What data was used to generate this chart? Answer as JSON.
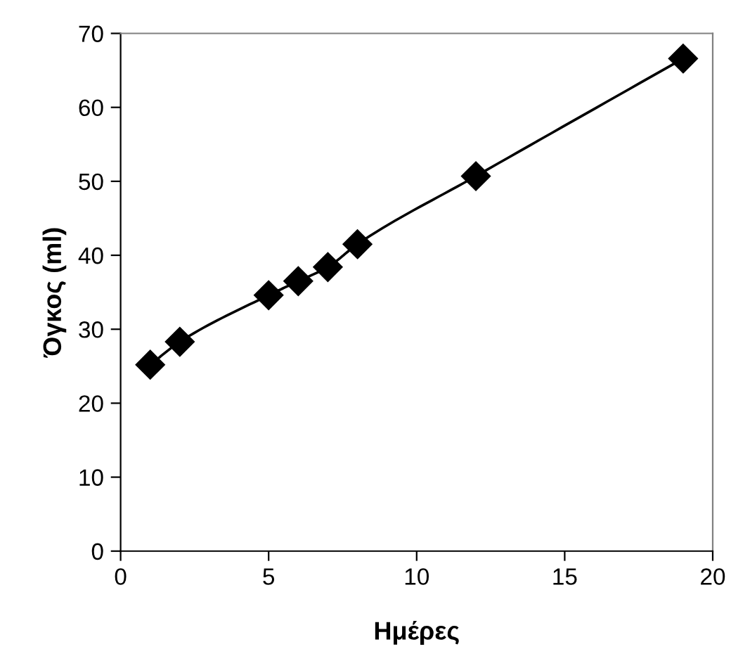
{
  "chart_data": {
    "type": "line",
    "xlabel": "Ημέρες",
    "ylabel": "Όγκος (ml)",
    "x": [
      1,
      2,
      5,
      6,
      7,
      8,
      12,
      19
    ],
    "series": [
      {
        "color": "#000000",
        "values": [
          25.2,
          28.3,
          34.6,
          36.5,
          38.4,
          41.5,
          50.7,
          66.6
        ]
      }
    ],
    "xlim": [
      0,
      20
    ],
    "xticks": [
      0,
      5,
      10,
      15,
      20
    ],
    "ylim": [
      0,
      70
    ],
    "yticks": [
      0,
      10,
      20,
      30,
      40,
      50,
      60,
      70
    ],
    "grid": false,
    "legend": false,
    "marker": "diamond",
    "line_style": "solid"
  }
}
